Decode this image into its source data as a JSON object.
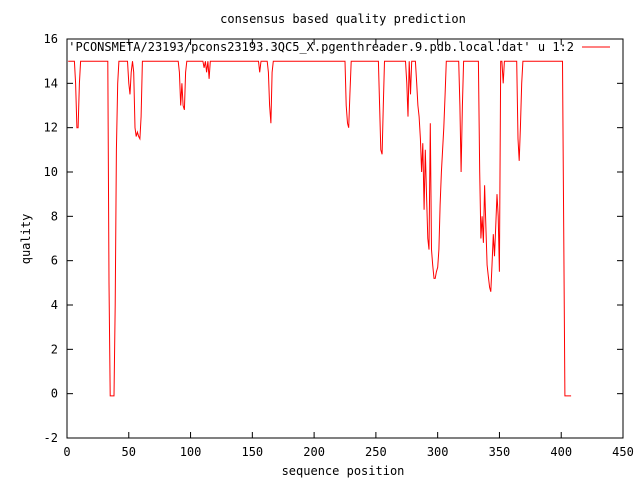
{
  "chart_data": {
    "type": "line",
    "title": "consensus based quality prediction",
    "xlabel": "sequence position",
    "ylabel": "quality",
    "xlim": [
      0,
      450
    ],
    "ylim": [
      -2,
      16
    ],
    "xticks": [
      0,
      50,
      100,
      150,
      200,
      250,
      300,
      350,
      400,
      450
    ],
    "yticks": [
      -2,
      0,
      2,
      4,
      6,
      8,
      10,
      12,
      14,
      16
    ],
    "grid": false,
    "legend_position": "top-right",
    "series": [
      {
        "name": "'PCONSMETA/23193/pcons23193.3QC5_X.pgenthreader.9.pdb.local.dat' u 1:2",
        "color": "#ff0000",
        "points": [
          [
            1,
            15
          ],
          [
            6,
            15
          ],
          [
            7,
            14
          ],
          [
            8,
            12
          ],
          [
            9,
            12
          ],
          [
            10,
            14
          ],
          [
            11,
            15
          ],
          [
            18,
            15
          ],
          [
            25,
            15
          ],
          [
            33,
            15
          ],
          [
            34,
            5
          ],
          [
            35,
            -0.1
          ],
          [
            38,
            -0.1
          ],
          [
            39,
            4
          ],
          [
            40,
            11
          ],
          [
            41,
            14
          ],
          [
            42,
            15
          ],
          [
            49,
            15
          ],
          [
            50,
            14
          ],
          [
            51,
            13.5
          ],
          [
            52,
            14.5
          ],
          [
            53,
            15
          ],
          [
            54,
            14.5
          ],
          [
            55,
            12
          ],
          [
            56,
            11.6
          ],
          [
            57,
            11.8
          ],
          [
            58,
            11.6
          ],
          [
            59,
            11.5
          ],
          [
            60,
            12.5
          ],
          [
            61,
            15
          ],
          [
            90,
            15
          ],
          [
            91,
            14.5
          ],
          [
            92,
            13
          ],
          [
            93,
            14
          ],
          [
            94,
            13
          ],
          [
            95,
            12.8
          ],
          [
            96,
            14.5
          ],
          [
            97,
            15
          ],
          [
            110,
            15
          ],
          [
            111,
            14.7
          ],
          [
            112,
            15
          ],
          [
            113,
            14.5
          ],
          [
            114,
            15
          ],
          [
            115,
            14.2
          ],
          [
            116,
            15
          ],
          [
            155,
            15
          ],
          [
            156,
            14.5
          ],
          [
            157,
            15
          ],
          [
            162,
            15
          ],
          [
            163,
            14.5
          ],
          [
            164,
            13
          ],
          [
            165,
            12.2
          ],
          [
            166,
            14.5
          ],
          [
            167,
            15
          ],
          [
            225,
            15
          ],
          [
            226,
            13
          ],
          [
            227,
            12.2
          ],
          [
            228,
            12
          ],
          [
            229,
            13.5
          ],
          [
            230,
            15
          ],
          [
            252,
            15
          ],
          [
            253,
            13
          ],
          [
            254,
            11
          ],
          [
            255,
            10.8
          ],
          [
            256,
            13
          ],
          [
            257,
            15
          ],
          [
            261,
            15
          ],
          [
            274,
            15
          ],
          [
            275,
            14
          ],
          [
            276,
            12.5
          ],
          [
            277,
            15
          ],
          [
            278,
            13.5
          ],
          [
            279,
            15
          ],
          [
            282,
            15
          ],
          [
            283,
            14
          ],
          [
            284,
            13
          ],
          [
            285,
            12.5
          ],
          [
            286,
            11.5
          ],
          [
            287,
            10
          ],
          [
            288,
            11.3
          ],
          [
            289,
            8.3
          ],
          [
            290,
            11
          ],
          [
            291,
            9
          ],
          [
            292,
            7
          ],
          [
            293,
            6.5
          ],
          [
            294,
            12.2
          ],
          [
            295,
            6.5
          ],
          [
            296,
            5.8
          ],
          [
            297,
            5.2
          ],
          [
            298,
            5.2
          ],
          [
            299,
            5.5
          ],
          [
            300,
            5.7
          ],
          [
            301,
            6.5
          ],
          [
            302,
            8.5
          ],
          [
            303,
            10
          ],
          [
            304,
            11
          ],
          [
            305,
            12
          ],
          [
            306,
            13.5
          ],
          [
            307,
            15
          ],
          [
            317,
            15
          ],
          [
            318,
            13
          ],
          [
            319,
            10
          ],
          [
            320,
            13
          ],
          [
            321,
            15
          ],
          [
            333,
            15
          ],
          [
            334,
            10
          ],
          [
            335,
            7
          ],
          [
            336,
            8
          ],
          [
            337,
            6.8
          ],
          [
            338,
            9.4
          ],
          [
            339,
            7.5
          ],
          [
            340,
            5.8
          ],
          [
            341,
            5.3
          ],
          [
            342,
            4.8
          ],
          [
            343,
            4.6
          ],
          [
            344,
            5.8
          ],
          [
            345,
            7.2
          ],
          [
            346,
            6.2
          ],
          [
            347,
            7.5
          ],
          [
            348,
            9
          ],
          [
            349,
            8
          ],
          [
            350,
            5.5
          ],
          [
            351,
            15
          ],
          [
            352,
            15
          ],
          [
            353,
            14
          ],
          [
            354,
            15
          ],
          [
            364,
            15
          ],
          [
            365,
            11.5
          ],
          [
            366,
            10.5
          ],
          [
            367,
            12
          ],
          [
            368,
            14
          ],
          [
            369,
            15
          ],
          [
            401,
            15
          ],
          [
            402,
            7.5
          ],
          [
            403,
            -0.1
          ],
          [
            408,
            -0.1
          ]
        ]
      }
    ]
  }
}
